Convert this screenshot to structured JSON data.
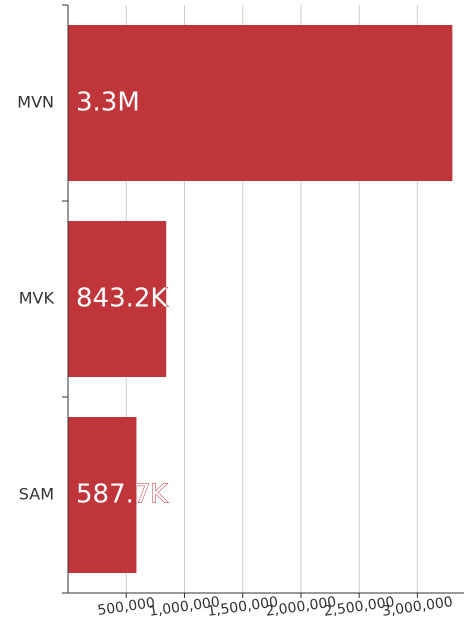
{
  "chart_data": {
    "type": "hbar",
    "categories": [
      "MVN",
      "MVK",
      "SAM"
    ],
    "values": [
      3300000,
      843200,
      587700
    ],
    "value_labels": [
      "3.3M",
      "843.2K",
      "587.7K"
    ],
    "color": "#c0353a",
    "xlim": [
      0,
      3400000
    ],
    "xticks": [
      {
        "value": 500000,
        "label": "500,000"
      },
      {
        "value": 1000000,
        "label": "1,000,000"
      },
      {
        "value": 1500000,
        "label": "1,500,000"
      },
      {
        "value": 2000000,
        "label": "2,000,000"
      },
      {
        "value": 2500000,
        "label": "2,500,000"
      },
      {
        "value": 3000000,
        "label": "3,000,000"
      }
    ],
    "grid": true
  }
}
